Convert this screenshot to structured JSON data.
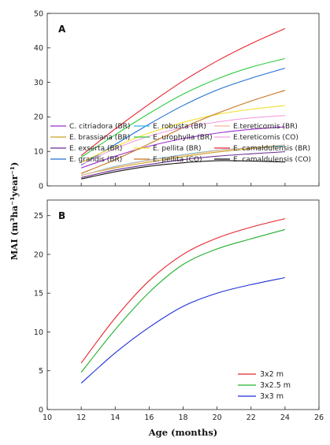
{
  "y_axis_title": "MAI (m³ha⁻¹year⁻¹)",
  "x_axis_title": "Age (months)",
  "chart_data": [
    {
      "type": "line",
      "panel_label": "A",
      "xlim": [
        10,
        26
      ],
      "ylim": [
        0,
        50
      ],
      "x_ticks": [
        10,
        12,
        14,
        16,
        18,
        20,
        22,
        24,
        26
      ],
      "y_ticks": [
        0,
        10,
        20,
        30,
        40,
        50
      ],
      "grid": false,
      "legend_position": "bottom, inside plot, three columns",
      "x": [
        12,
        14,
        16,
        18,
        20,
        22,
        24
      ],
      "series": [
        {
          "name": "C. citriadora (BR)",
          "color": "#9b30c8",
          "values": [
            5.2,
            8.6,
            11.5,
            13.7,
            15.3,
            16.4,
            17.1
          ]
        },
        {
          "name": "E. brassiana (BR)",
          "color": "#c9a227",
          "values": [
            3.1,
            5.2,
            6.9,
            8.5,
            9.8,
            10.8,
            11.5
          ]
        },
        {
          "name": "E. exserta (BR)",
          "color": "#6a2c91",
          "values": [
            2.4,
            4.6,
            6.2,
            7.6,
            8.6,
            9.3,
            9.9
          ]
        },
        {
          "name": "E. grandis (BR)",
          "color": "#1f6fd6",
          "values": [
            6.0,
            12.0,
            17.9,
            23.3,
            27.8,
            31.2,
            34.1
          ]
        },
        {
          "name": "E. robusta (BR)",
          "color": "#2fb7e8",
          "values": [
            3.0,
            5.6,
            7.5,
            9.0,
            10.3,
            11.1,
            11.6
          ]
        },
        {
          "name": "E. urophylla (BR)",
          "color": "#2ecc40",
          "values": [
            8.3,
            14.8,
            21.0,
            26.6,
            31.0,
            34.4,
            36.9
          ]
        },
        {
          "name": "E. pellita (BR)",
          "color": "#f0e02a",
          "values": [
            6.8,
            11.4,
            15.3,
            18.4,
            20.7,
            22.2,
            23.3
          ]
        },
        {
          "name": "E. pellita (CO)",
          "color": "#c8741e",
          "values": [
            3.6,
            7.6,
            12.2,
            16.9,
            21.0,
            24.6,
            27.7
          ]
        },
        {
          "name": "E.tereticornis (BR)",
          "color": "#f0b896",
          "values": [
            3.0,
            5.5,
            7.4,
            8.9,
            10.2,
            11.1,
            11.9
          ]
        },
        {
          "name": "E.tereticornis (CO)",
          "color": "#f59ee0",
          "values": [
            6.2,
            10.8,
            14.4,
            16.9,
            18.5,
            19.7,
            20.4
          ]
        },
        {
          "name": "E. camaldulensis (BR)",
          "color": "#e8242c",
          "values": [
            8.8,
            16.5,
            23.7,
            30.4,
            36.2,
            41.2,
            45.6
          ]
        },
        {
          "name": "E. camaldulensis (CO)",
          "color": "#111111",
          "values": [
            2.0,
            4.1,
            5.7,
            6.7,
            7.3,
            7.2,
            6.9
          ]
        }
      ],
      "legend_columns": [
        [
          "C. citriadora (BR)",
          "E. brassiana (BR)",
          "E. exserta (BR)",
          "E. grandis (BR)"
        ],
        [
          "E. robusta (BR)",
          "E. urophylla (BR)",
          "E. pellita (BR)",
          "E. pellita (CO)"
        ],
        [
          "E.tereticornis (BR)",
          "E.tereticornis (CO)",
          "E. camaldulensis (BR)",
          "E. camaldulensis (CO)"
        ]
      ]
    },
    {
      "type": "line",
      "panel_label": "B",
      "xlim": [
        10,
        26
      ],
      "ylim": [
        0,
        27
      ],
      "x_ticks": [
        10,
        12,
        14,
        16,
        18,
        20,
        22,
        24,
        26
      ],
      "y_ticks": [
        0,
        5,
        10,
        15,
        20,
        25
      ],
      "grid": false,
      "legend_position": "bottom-right, inside plot",
      "x": [
        12,
        14,
        16,
        18,
        20,
        22,
        24
      ],
      "series": [
        {
          "name": "3x2 m",
          "color": "#e8242c",
          "values": [
            6.0,
            11.8,
            16.6,
            20.0,
            22.1,
            23.5,
            24.6
          ]
        },
        {
          "name": "3x2.5 m",
          "color": "#22b02e",
          "values": [
            4.8,
            10.3,
            15.1,
            18.7,
            20.7,
            22.0,
            23.2
          ]
        },
        {
          "name": "3x3 m",
          "color": "#1c2fd6",
          "values": [
            3.4,
            7.3,
            10.6,
            13.3,
            15.0,
            16.1,
            17.0
          ]
        }
      ]
    }
  ]
}
